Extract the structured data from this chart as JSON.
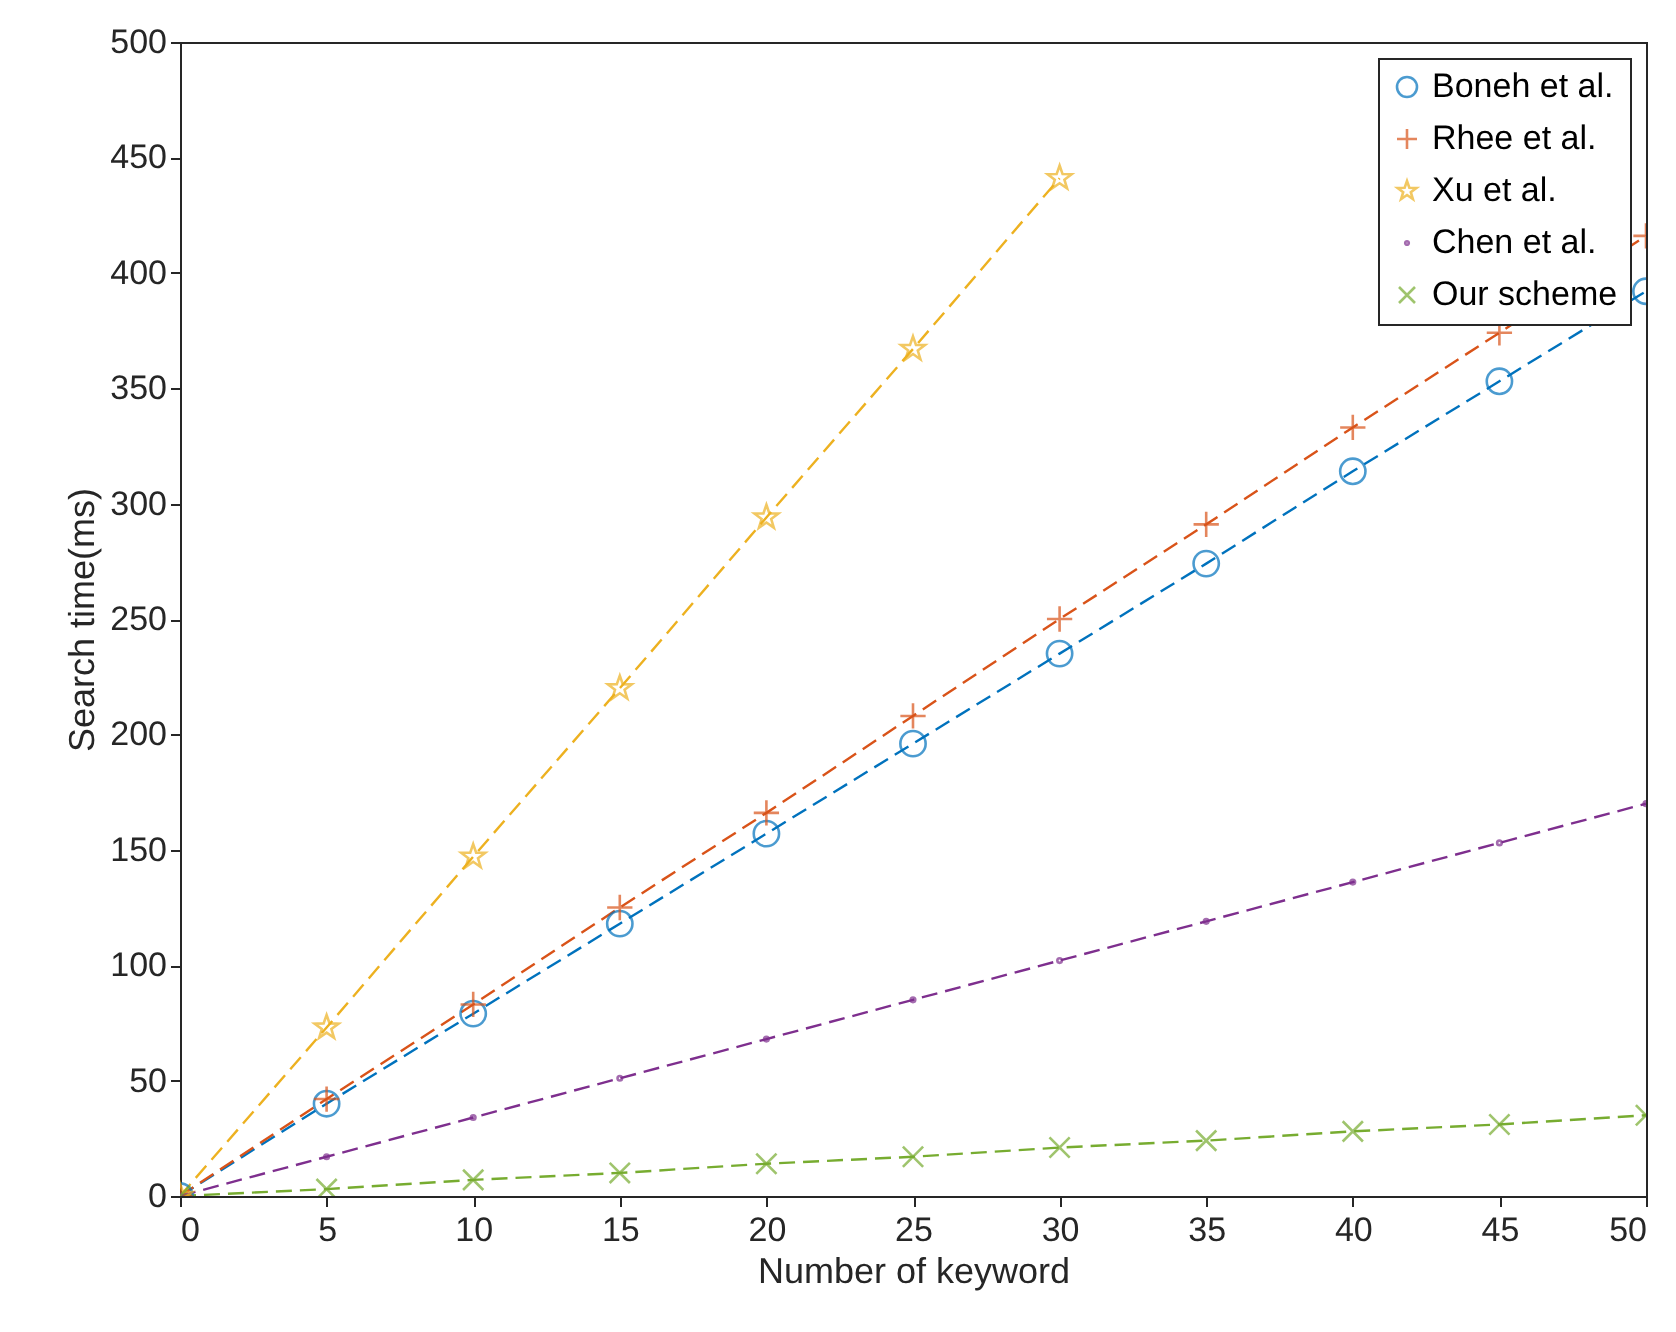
{
  "chart_data": {
    "type": "line",
    "xlabel": "Number of keyword",
    "ylabel": "Search time(ms)",
    "x": [
      0,
      5,
      10,
      15,
      20,
      25,
      30,
      35,
      40,
      45,
      50
    ],
    "series": [
      {
        "name": "Boneh et al.",
        "color": "#0072bd",
        "marker": "circle",
        "values": [
          0,
          40,
          79,
          118,
          157,
          196,
          235,
          274,
          314,
          353,
          392
        ]
      },
      {
        "name": "Rhee et al.",
        "color": "#d95319",
        "marker": "cross",
        "values": [
          0,
          42,
          83,
          125,
          166,
          208,
          250,
          291,
          333,
          374,
          416
        ]
      },
      {
        "name": "Xu et al.",
        "color": "#edb120",
        "marker": "star",
        "values": [
          0,
          73,
          147,
          220,
          294,
          367,
          441,
          null,
          null,
          null,
          null
        ]
      },
      {
        "name": "Chen et al.",
        "color": "#7e2f8e",
        "marker": "point",
        "values": [
          0,
          17,
          34,
          51,
          68,
          85,
          102,
          119,
          136,
          153,
          170
        ]
      },
      {
        "name": "Our scheme",
        "color": "#77ac30",
        "marker": "x",
        "values": [
          0,
          3,
          7,
          10,
          14,
          17,
          21,
          24,
          28,
          31,
          35
        ]
      }
    ],
    "xlim": [
      0,
      50
    ],
    "xticks": [
      0,
      5,
      10,
      15,
      20,
      25,
      30,
      35,
      40,
      45,
      50
    ],
    "ylim": [
      0,
      500
    ],
    "yticks": [
      0,
      50,
      100,
      150,
      200,
      250,
      300,
      350,
      400,
      450,
      500
    ],
    "line_style": "dashed",
    "legend": "top right",
    "grid": false
  }
}
